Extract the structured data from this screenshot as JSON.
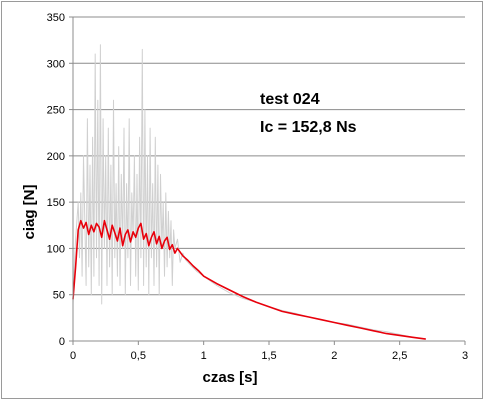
{
  "chart_data": {
    "type": "line",
    "xlabel": "czas [s]",
    "ylabel": "ciag [N]",
    "xlim": [
      0,
      3
    ],
    "ylim": [
      0,
      350
    ],
    "x_ticks": [
      "0",
      "0,5",
      "1",
      "1,5",
      "2",
      "2,5",
      "3"
    ],
    "y_ticks": [
      "0",
      "50",
      "100",
      "150",
      "200",
      "250",
      "300",
      "350"
    ],
    "grid": "horizontal",
    "legend": "none",
    "annotations": [
      "test 024",
      "Ic = 152,8 Ns"
    ],
    "series": [
      {
        "color": "#d0d0d0",
        "x": [
          0,
          0.01,
          0.02,
          0.04,
          0.05,
          0.06,
          0.07,
          0.08,
          0.1,
          0.11,
          0.12,
          0.13,
          0.14,
          0.15,
          0.16,
          0.17,
          0.18,
          0.19,
          0.2,
          0.21,
          0.22,
          0.23,
          0.24,
          0.25,
          0.26,
          0.27,
          0.28,
          0.29,
          0.3,
          0.31,
          0.32,
          0.33,
          0.34,
          0.35,
          0.36,
          0.37,
          0.38,
          0.39,
          0.4,
          0.41,
          0.42,
          0.43,
          0.44,
          0.45,
          0.46,
          0.47,
          0.48,
          0.49,
          0.5,
          0.51,
          0.52,
          0.53,
          0.54,
          0.55,
          0.56,
          0.57,
          0.58,
          0.59,
          0.6,
          0.61,
          0.62,
          0.63,
          0.64,
          0.65,
          0.66,
          0.67,
          0.68,
          0.69,
          0.7,
          0.71,
          0.72,
          0.73,
          0.74,
          0.75,
          0.76,
          0.77,
          0.78,
          0.8,
          0.82,
          0.84,
          0.86,
          0.9,
          0.95,
          1.0,
          1.1,
          1.2,
          1.3,
          1.4,
          1.5,
          1.6,
          1.7,
          1.8,
          1.9,
          2.0,
          2.1,
          2.2,
          2.3,
          2.4,
          2.5,
          2.6,
          2.7
        ],
        "values": [
          40,
          80,
          110,
          150,
          90,
          160,
          70,
          200,
          60,
          240,
          80,
          190,
          50,
          220,
          70,
          310,
          90,
          260,
          60,
          320,
          40,
          240,
          100,
          200,
          60,
          230,
          80,
          190,
          50,
          260,
          90,
          170,
          70,
          210,
          60,
          180,
          100,
          230,
          50,
          170,
          90,
          240,
          60,
          160,
          110,
          200,
          70,
          180,
          55,
          220,
          90,
          315,
          60,
          250,
          80,
          200,
          50,
          230,
          90,
          170,
          60,
          220,
          80,
          190,
          50,
          180,
          100,
          150,
          70,
          160,
          80,
          140,
          90,
          130,
          60,
          120,
          100,
          110,
          85,
          95,
          88,
          82,
          75,
          70,
          60,
          52,
          46,
          42,
          37,
          33,
          30,
          26,
          23,
          20,
          18,
          15,
          12,
          10,
          7,
          4,
          2
        ]
      },
      {
        "color": "#e8000b",
        "x": [
          0,
          0.02,
          0.04,
          0.06,
          0.08,
          0.1,
          0.12,
          0.14,
          0.16,
          0.18,
          0.2,
          0.22,
          0.24,
          0.26,
          0.28,
          0.3,
          0.32,
          0.34,
          0.36,
          0.38,
          0.4,
          0.42,
          0.44,
          0.46,
          0.48,
          0.5,
          0.52,
          0.54,
          0.56,
          0.58,
          0.6,
          0.62,
          0.64,
          0.66,
          0.68,
          0.7,
          0.72,
          0.74,
          0.76,
          0.78,
          0.8,
          0.82,
          0.84,
          0.88,
          0.92,
          0.96,
          1.0,
          1.1,
          1.2,
          1.3,
          1.4,
          1.5,
          1.6,
          1.7,
          1.8,
          1.9,
          2.0,
          2.1,
          2.2,
          2.3,
          2.4,
          2.5,
          2.6,
          2.7
        ],
        "values": [
          45,
          80,
          120,
          130,
          122,
          128,
          115,
          125,
          118,
          127,
          123,
          112,
          130,
          120,
          110,
          125,
          117,
          108,
          122,
          103,
          115,
          120,
          107,
          118,
          112,
          122,
          127,
          110,
          116,
          103,
          112,
          118,
          105,
          113,
          100,
          108,
          112,
          99,
          104,
          95,
          100,
          96,
          92,
          87,
          81,
          76,
          70,
          62,
          55,
          48,
          42,
          37,
          32,
          29,
          26,
          23,
          20,
          17,
          14,
          11,
          8,
          6,
          4,
          2
        ]
      }
    ]
  }
}
